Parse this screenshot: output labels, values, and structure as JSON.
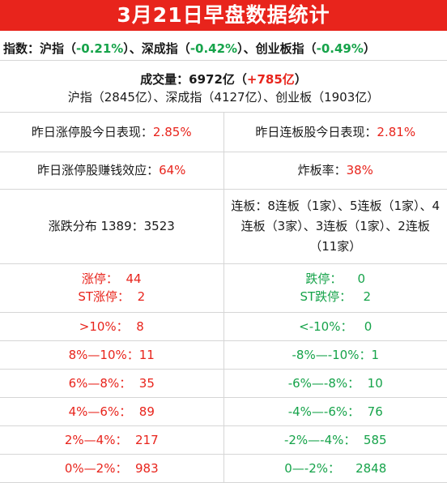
{
  "title": "3月21日早盘数据统计",
  "indices": {
    "label": "指数：",
    "sh_name": "沪指（",
    "sh_change": "-0.21%",
    "sep1": "）、深成指（",
    "sz_change": "-0.42%",
    "sep2": "）、创业板指（",
    "cy_change": "-0.49%",
    "end": "）"
  },
  "volume": {
    "label": "成交量：6972亿（",
    "delta": "+785亿",
    "end": "）",
    "breakdown": "沪指（2845亿）、深成指（4127亿）、创业板（1903亿）"
  },
  "performance": {
    "limit_up_label": "昨日涨停股今日表现：",
    "limit_up_value": "2.85%",
    "streak_label": "昨日连板股今日表现：",
    "streak_value": "2.81%"
  },
  "money": {
    "effect_label": "昨日涨停股赚钱效应：",
    "effect_value": "64%",
    "break_label": "炸板率：",
    "break_value": "38%"
  },
  "distribution": {
    "ratio_text": "涨跌分布 1389：3523",
    "streak_text": "连板：8连板（1家）、5连板（1家）、4连板（3家）、3连板（1家）、2连板（11家）"
  },
  "limits": {
    "up_label": "涨停：",
    "up_value": "44",
    "st_up_label": "ST涨停：",
    "st_up_value": "2",
    "down_label": "跌停：",
    "down_value": "0",
    "st_down_label": "ST跌停：",
    "st_down_value": "2"
  },
  "ranges": [
    {
      "up": ">10%：  8",
      "down": "<-10%：   0"
    },
    {
      "up": "8%—10%：11",
      "down": "-8%—-10%：1"
    },
    {
      "up": "6%—8%：  35",
      "down": "-6%—-8%：  10"
    },
    {
      "up": "4%—6%：  89",
      "down": "-4%—-6%：  76"
    },
    {
      "up": "2%—4%：  217",
      "down": "-2%—-4%：  585"
    },
    {
      "up": "0%—2%：  983",
      "down": "0—-2%：    2848"
    }
  ],
  "colors": {
    "title_bg": "#e8241c",
    "up": "#e8241c",
    "down": "#16a34a"
  }
}
